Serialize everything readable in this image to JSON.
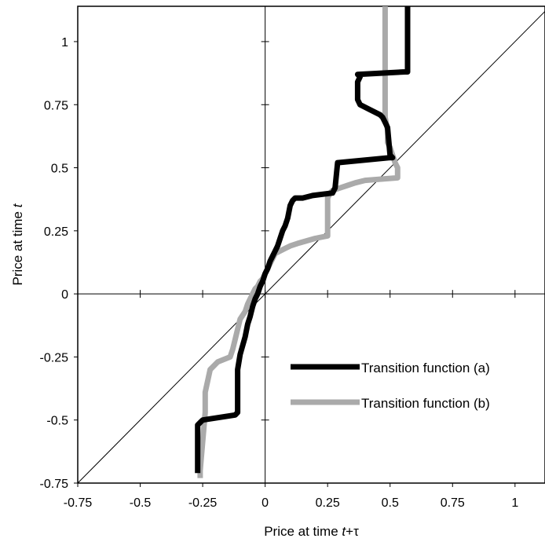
{
  "chart_data": {
    "type": "line",
    "xlabel": {
      "prefix": "Price at time ",
      "var": "t",
      "suffix": "+τ"
    },
    "ylabel": {
      "prefix": "Price at time ",
      "var": "t"
    },
    "xlim": [
      -0.75,
      1.12
    ],
    "ylim": [
      -0.75,
      1.14
    ],
    "xticks": [
      -0.75,
      -0.5,
      -0.25,
      0,
      0.25,
      0.5,
      0.75,
      1
    ],
    "yticks": [
      -0.75,
      -0.5,
      -0.25,
      0,
      0.25,
      0.5,
      0.75,
      1
    ],
    "xtick_labels": [
      "-0.75",
      "-0.5",
      "-0.25",
      "0",
      "0.25",
      "0.5",
      "0.75",
      "1"
    ],
    "ytick_labels": [
      "-0.75",
      "-0.5",
      "-0.25",
      "0",
      "0.25",
      "0.5",
      "0.75",
      "1"
    ],
    "diagonal": {
      "x": [
        -0.75,
        1.12
      ],
      "y": [
        -0.75,
        1.12
      ],
      "color": "#000000"
    },
    "legend_position": "bottom-right",
    "series": [
      {
        "name": "Transition function (a)",
        "color": "#000000",
        "x": [
          -0.27,
          -0.27,
          -0.26,
          -0.25,
          -0.12,
          -0.11,
          -0.11,
          -0.1,
          -0.08,
          -0.07,
          -0.06,
          -0.05,
          -0.04,
          -0.03,
          -0.02,
          -0.01,
          0.0,
          0.01,
          0.02,
          0.03,
          0.04,
          0.05,
          0.06,
          0.07,
          0.08,
          0.09,
          0.1,
          0.11,
          0.12,
          0.15,
          0.19,
          0.27,
          0.28,
          0.29,
          0.5,
          0.51,
          0.5,
          0.49,
          0.48,
          0.47,
          0.46,
          0.42,
          0.4,
          0.38,
          0.37,
          0.37,
          0.38,
          0.37,
          0.56,
          0.57,
          0.57
        ],
        "y": [
          -0.71,
          -0.52,
          -0.51,
          -0.5,
          -0.48,
          -0.47,
          -0.3,
          -0.24,
          -0.17,
          -0.12,
          -0.09,
          -0.05,
          -0.02,
          0.0,
          0.03,
          0.05,
          0.08,
          0.1,
          0.13,
          0.15,
          0.17,
          0.19,
          0.22,
          0.25,
          0.27,
          0.3,
          0.35,
          0.37,
          0.38,
          0.38,
          0.39,
          0.4,
          0.42,
          0.52,
          0.54,
          0.54,
          0.55,
          0.66,
          0.68,
          0.7,
          0.71,
          0.73,
          0.74,
          0.75,
          0.77,
          0.84,
          0.86,
          0.87,
          0.88,
          0.88,
          1.14
        ]
      },
      {
        "name": "Transition function (b)",
        "color": "#aaaaaa",
        "x": [
          -0.26,
          -0.26,
          -0.24,
          -0.24,
          -0.22,
          -0.19,
          -0.14,
          -0.13,
          -0.12,
          -0.11,
          -0.1,
          -0.08,
          -0.07,
          -0.06,
          -0.05,
          -0.04,
          -0.03,
          -0.02,
          -0.01,
          0.0,
          0.01,
          0.02,
          0.03,
          0.04,
          0.06,
          0.08,
          0.1,
          0.13,
          0.2,
          0.25,
          0.25,
          0.26,
          0.27,
          0.3,
          0.33,
          0.36,
          0.4,
          0.53,
          0.53,
          0.52,
          0.51,
          0.5,
          0.49,
          0.49,
          0.48,
          0.48
        ],
        "y": [
          -0.73,
          -0.7,
          -0.47,
          -0.39,
          -0.3,
          -0.27,
          -0.25,
          -0.22,
          -0.18,
          -0.14,
          -0.1,
          -0.07,
          -0.04,
          -0.02,
          0.0,
          0.02,
          0.03,
          0.05,
          0.06,
          0.08,
          0.1,
          0.12,
          0.14,
          0.16,
          0.17,
          0.18,
          0.19,
          0.2,
          0.22,
          0.23,
          0.38,
          0.4,
          0.41,
          0.42,
          0.43,
          0.44,
          0.45,
          0.46,
          0.5,
          0.52,
          0.55,
          0.58,
          0.6,
          0.65,
          0.7,
          1.14
        ]
      }
    ]
  }
}
